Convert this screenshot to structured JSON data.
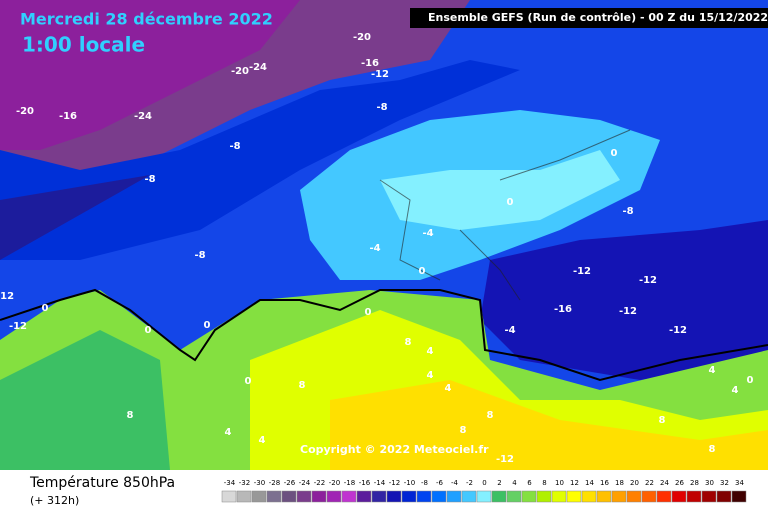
{
  "header": {
    "date": "Mercredi 28 décembre 2022",
    "time": "1:00 locale",
    "run": "Ensemble GEFS  (Run de contrôle)  -  00 Z du 15/12/2022",
    "copyright": "Copyright © 2022 Meteociel.fr"
  },
  "footer": {
    "title": "Température 850hPa",
    "lead": "(+ 312h)"
  },
  "scale": {
    "labels": [
      -34,
      -32,
      -30,
      -28,
      -26,
      -24,
      -22,
      -20,
      -18,
      -16,
      -14,
      -12,
      -10,
      -8,
      -6,
      -4,
      -2,
      0,
      2,
      4,
      6,
      8,
      10,
      12,
      14,
      16,
      18,
      20,
      22,
      24,
      26,
      28,
      30,
      32,
      34
    ],
    "colors": [
      "#d8d8d8",
      "#b8b8b8",
      "#989898",
      "#7c7090",
      "#6c5080",
      "#7a3c8c",
      "#8c209c",
      "#a024b4",
      "#c034d0",
      "#5c1c9c",
      "#3224a4",
      "#1414b4",
      "#0024d4",
      "#0044f0",
      "#0070ff",
      "#20a0ff",
      "#44c8ff",
      "#84f0ff",
      "#3cc064",
      "#64d064",
      "#84e040",
      "#b0f000",
      "#e0ff00",
      "#ffff00",
      "#ffe000",
      "#ffc000",
      "#ffa000",
      "#ff8000",
      "#ff6000",
      "#ff3000",
      "#e00000",
      "#c00000",
      "#a00000",
      "#800000",
      "#400000"
    ]
  },
  "contour_labels": [
    -20,
    -16,
    -12,
    -20,
    -24,
    -20,
    -16,
    -24,
    -8,
    -8,
    -8,
    -8,
    -4,
    -4,
    0,
    0,
    0,
    -8,
    -12,
    -12,
    -16,
    -12,
    -12,
    -4,
    -12,
    -12,
    0,
    0,
    0,
    0,
    0,
    8,
    8,
    4,
    4,
    8,
    4,
    4,
    4,
    8,
    8,
    4,
    4,
    0,
    8,
    -12,
    8
  ]
}
